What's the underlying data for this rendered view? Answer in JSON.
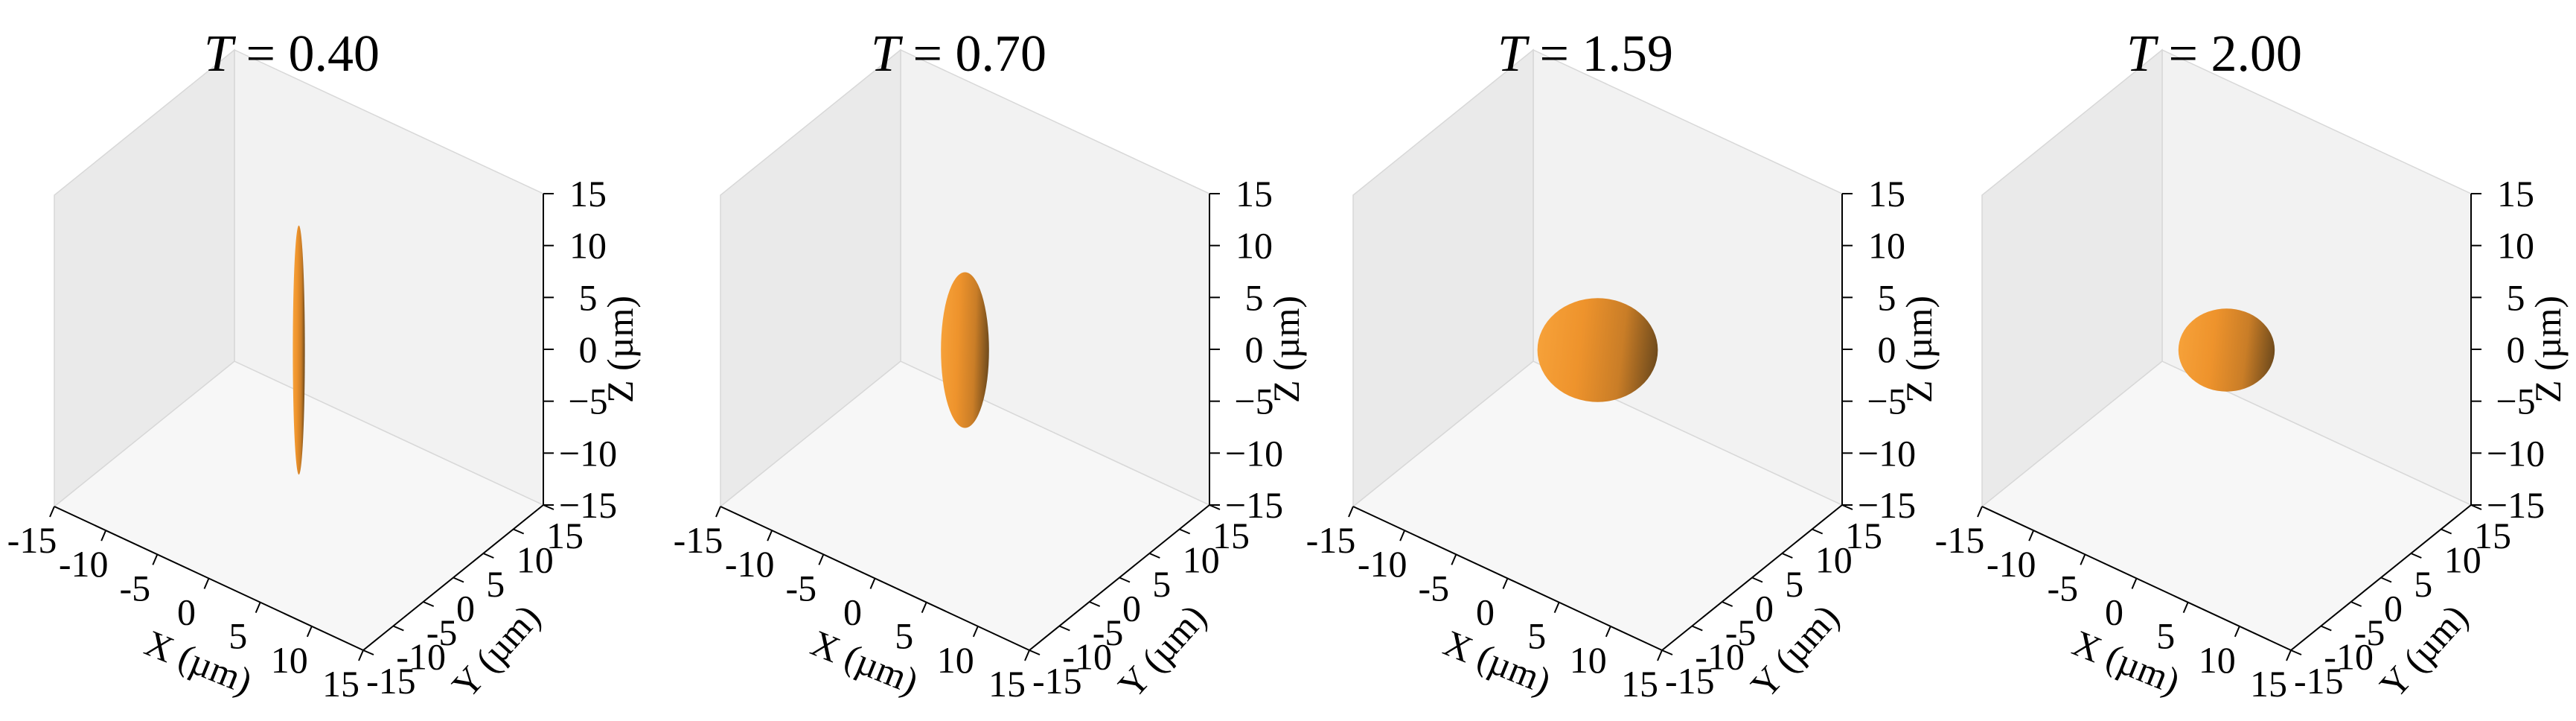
{
  "figure": {
    "background": "#ffffff",
    "pane_colors": [
      "#f2f2f2",
      "#eaeaea",
      "#f7f7f7"
    ],
    "edge_color": "#d8d8d8"
  },
  "chart_data": [
    {
      "type": "3d-surface",
      "title": {
        "var": "T",
        "value": "0.40"
      },
      "surface": "ellipsoid",
      "semi_axes_um": {
        "x": 0.5,
        "y": 0.5,
        "z": 12.0
      },
      "color": "#f0962e",
      "xlabel": "X (µm)",
      "ylabel": "Y (µm)",
      "zlabel": "Z (µm)",
      "xlim": [
        -15,
        15
      ],
      "ylim": [
        -15,
        15
      ],
      "zlim": [
        -15,
        15
      ],
      "xticks": [
        -15,
        -10,
        -5,
        0,
        5,
        10,
        15
      ],
      "yticks": [
        -15,
        -10,
        -5,
        0,
        5,
        10,
        15
      ],
      "zticks": [
        -15,
        -10,
        -5,
        0,
        5,
        10,
        15
      ],
      "grid": false
    },
    {
      "type": "3d-surface",
      "title": {
        "var": "T",
        "value": "0.70"
      },
      "surface": "ellipsoid",
      "semi_axes_um": {
        "x": 2.0,
        "y": 2.0,
        "z": 7.5
      },
      "color": "#f0962e",
      "xlabel": "X (µm)",
      "ylabel": "Y (µm)",
      "zlabel": "Z (µm)",
      "xlim": [
        -15,
        15
      ],
      "ylim": [
        -15,
        15
      ],
      "zlim": [
        -15,
        15
      ],
      "xticks": [
        -15,
        -10,
        -5,
        0,
        5,
        10,
        15
      ],
      "yticks": [
        -15,
        -10,
        -5,
        0,
        5,
        10,
        15
      ],
      "zticks": [
        -15,
        -10,
        -5,
        0,
        5,
        10,
        15
      ],
      "grid": false
    },
    {
      "type": "3d-surface",
      "title": {
        "var": "T",
        "value": "1.59"
      },
      "surface": "ellipsoid",
      "semi_axes_um": {
        "x": 5.0,
        "y": 5.0,
        "z": 5.0
      },
      "color": "#f0962e",
      "xlabel": "X (µm)",
      "ylabel": "Y (µm)",
      "zlabel": "Z (µm)",
      "xlim": [
        -15,
        15
      ],
      "ylim": [
        -15,
        15
      ],
      "zlim": [
        -15,
        15
      ],
      "xticks": [
        -15,
        -10,
        -5,
        0,
        5,
        10,
        15
      ],
      "yticks": [
        -15,
        -10,
        -5,
        0,
        5,
        10,
        15
      ],
      "zticks": [
        -15,
        -10,
        -5,
        0,
        5,
        10,
        15
      ],
      "grid": false
    },
    {
      "type": "3d-surface",
      "title": {
        "var": "T",
        "value": "2.00"
      },
      "surface": "ellipsoid",
      "semi_axes_um": {
        "x": 4.0,
        "y": 4.0,
        "z": 4.0
      },
      "color": "#f0962e",
      "xlabel": "X (µm)",
      "ylabel": "Y (µm)",
      "zlabel": "Z (µm)",
      "xlim": [
        -15,
        15
      ],
      "ylim": [
        -15,
        15
      ],
      "zlim": [
        -15,
        15
      ],
      "xticks": [
        -15,
        -10,
        -5,
        0,
        5,
        10,
        15
      ],
      "yticks": [
        -15,
        -10,
        -5,
        0,
        5,
        10,
        15
      ],
      "zticks": [
        -15,
        -10,
        -5,
        0,
        5,
        10,
        15
      ],
      "grid": false
    }
  ]
}
